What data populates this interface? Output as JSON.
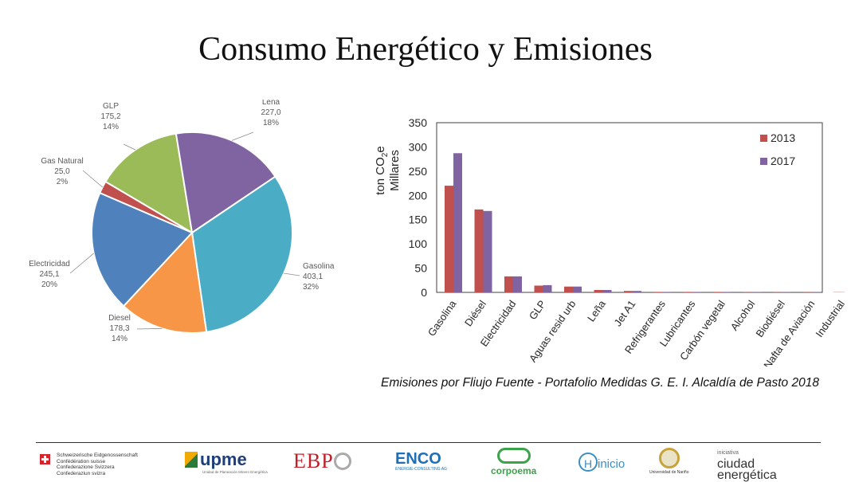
{
  "title": "Consumo Energético y Emisiones",
  "caption": "Emisiones por Fliujo Fuente - Portafolio Medidas G. E. I. Alcaldía de Pasto 2018",
  "colors": {
    "gasolina": "#4bacc6",
    "diesel": "#f79646",
    "electricidad": "#4f81bd",
    "gas_natural": "#c0504d",
    "glp": "#9bbb59",
    "lena": "#8064a2",
    "series_2013": "#c0504d",
    "series_2017": "#8064a2"
  },
  "chart_data": [
    {
      "type": "pie",
      "slices": [
        {
          "name": "Gasolina",
          "value": 403.1,
          "value_label": "403,1",
          "percent_label": "32%",
          "color": "#4bacc6"
        },
        {
          "name": "Diesel",
          "value": 178.3,
          "value_label": "178,3",
          "percent_label": "14%",
          "color": "#f79646"
        },
        {
          "name": "Electricidad",
          "value": 245.1,
          "value_label": "245,1",
          "percent_label": "20%",
          "color": "#4f81bd"
        },
        {
          "name": "Gas Natural",
          "value": 25.0,
          "value_label": "25,0",
          "percent_label": "2%",
          "color": "#c0504d"
        },
        {
          "name": "GLP",
          "value": 175.2,
          "value_label": "175,2",
          "percent_label": "14%",
          "color": "#9bbb59"
        },
        {
          "name": "Leña",
          "value": 227.0,
          "value_label": "227,0",
          "percent_label": "18%",
          "color": "#8064a2"
        }
      ]
    },
    {
      "type": "bar",
      "categories": [
        "Gasolina",
        "Diésel",
        "Electricidad",
        "GLP",
        "Aguas resid urb",
        "Leña",
        "Jet A1",
        "Refrigerantes",
        "Lubricantes",
        "Carbón vegetal",
        "Alcohol",
        "Biodiésel",
        "Nafta de Aviación",
        "Industrial"
      ],
      "series": [
        {
          "name": "2013",
          "color": "#c0504d",
          "values": [
            220,
            171,
            33,
            14,
            12,
            5,
            3,
            1,
            1,
            1,
            0.5,
            0.5,
            0.5,
            0.5
          ]
        },
        {
          "name": "2017",
          "color": "#8064a2",
          "values": [
            287,
            168,
            33,
            15,
            12,
            5,
            3,
            1,
            1,
            1,
            0.5,
            0.5,
            0.5,
            0.5
          ]
        }
      ],
      "ylabel_line1": "ton CO",
      "ylabel_sub": "2",
      "ylabel_tail": "e",
      "ylabel_line2": "Millares",
      "ylim": [
        0,
        350
      ],
      "yticks": [
        "0",
        "50",
        "100",
        "150",
        "200",
        "250",
        "300",
        "350"
      ],
      "grid": false,
      "legend_position": "top-right"
    }
  ],
  "logos": {
    "swiss_text": [
      "Schweizerische Eidgenossenschaft",
      "Confédération suisse",
      "Confederazione Svizzera",
      "Confederaziun svizra"
    ],
    "upme": "upme",
    "upme_sub": "Unidad de Planeación Minero Energética",
    "ebp": "EBP",
    "enco": "ENCO",
    "enco_sub": "ENERGIE-CONSULTING AG",
    "corpoema": "corpoema",
    "hinicio": "inicio",
    "hinicio_h": "H",
    "narino": "Universidad de Nariño",
    "ciudad_small": "iniciativa",
    "ciudad_line1": "ciudad",
    "ciudad_line2": "energética"
  }
}
